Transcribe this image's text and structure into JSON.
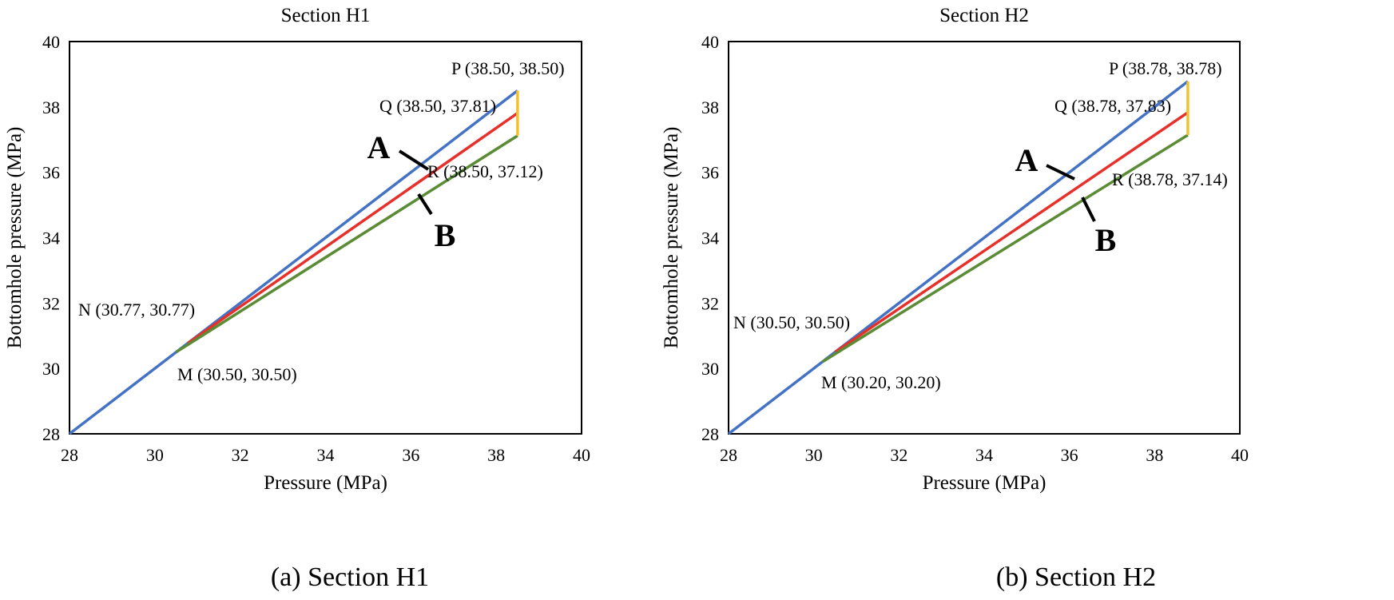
{
  "figure": {
    "captions": [
      "(a) Section H1",
      "(b) Section H2"
    ]
  },
  "colors": {
    "series_A": "#4472C4",
    "series_mid": "#E8302A",
    "series_B": "#5B8C35",
    "vertical_bar": "#F5C02D",
    "callout": "#000000"
  },
  "chart_data": [
    {
      "type": "line",
      "title": "Section H1",
      "xlabel": "Pressure (MPa)",
      "ylabel": "Bottomhole pressure (MPa)",
      "xlim": [
        28,
        40
      ],
      "ylim": [
        28,
        40
      ],
      "xticks": [
        28,
        30,
        32,
        34,
        36,
        38,
        40
      ],
      "yticks": [
        28,
        30,
        32,
        34,
        36,
        38,
        40
      ],
      "series": [
        {
          "name": "A",
          "color_key": "series_A",
          "points": [
            [
              28,
              28
            ],
            [
              38.5,
              38.5
            ]
          ]
        },
        {
          "name": "middle",
          "color_key": "series_mid",
          "points": [
            [
              30.77,
              30.77
            ],
            [
              38.5,
              37.81
            ]
          ]
        },
        {
          "name": "B",
          "color_key": "series_B",
          "points": [
            [
              30.5,
              30.5
            ],
            [
              38.5,
              37.12
            ]
          ]
        },
        {
          "name": "P-R",
          "color_key": "vertical_bar",
          "points": [
            [
              38.5,
              38.5
            ],
            [
              38.5,
              37.12
            ]
          ]
        }
      ],
      "annotations": [
        {
          "text": "P (38.50, 38.50)"
        },
        {
          "text": "Q (38.50, 37.81)"
        },
        {
          "text": "R (38.50, 37.12)"
        },
        {
          "text": "N (30.77, 30.77)"
        },
        {
          "text": "M (30.50, 30.50)"
        }
      ],
      "callouts": [
        {
          "text": "A",
          "target": "series A"
        },
        {
          "text": "B",
          "target": "series B"
        }
      ]
    },
    {
      "type": "line",
      "title": "Section H2",
      "xlabel": "Pressure (MPa)",
      "ylabel": "Bottomhole pressure (MPa)",
      "xlim": [
        28,
        40
      ],
      "ylim": [
        28,
        40
      ],
      "xticks": [
        28,
        30,
        32,
        34,
        36,
        38,
        40
      ],
      "yticks": [
        28,
        30,
        32,
        34,
        36,
        38,
        40
      ],
      "series": [
        {
          "name": "A",
          "color_key": "series_A",
          "points": [
            [
              28,
              28
            ],
            [
              38.78,
              38.78
            ]
          ]
        },
        {
          "name": "middle",
          "color_key": "series_mid",
          "points": [
            [
              30.5,
              30.5
            ],
            [
              38.78,
              37.83
            ]
          ]
        },
        {
          "name": "B",
          "color_key": "series_B",
          "points": [
            [
              30.2,
              30.2
            ],
            [
              38.78,
              37.14
            ]
          ]
        },
        {
          "name": "P-R",
          "color_key": "vertical_bar",
          "points": [
            [
              38.78,
              38.78
            ],
            [
              38.78,
              37.14
            ]
          ]
        }
      ],
      "annotations": [
        {
          "text": "P (38.78, 38.78)"
        },
        {
          "text": "Q (38.78, 37.83)"
        },
        {
          "text": "R (38.78, 37.14)"
        },
        {
          "text": "N (30.50, 30.50)"
        },
        {
          "text": "M (30.20, 30.20)"
        }
      ],
      "callouts": [
        {
          "text": "A",
          "target": "series A"
        },
        {
          "text": "B",
          "target": "series B"
        }
      ]
    }
  ]
}
